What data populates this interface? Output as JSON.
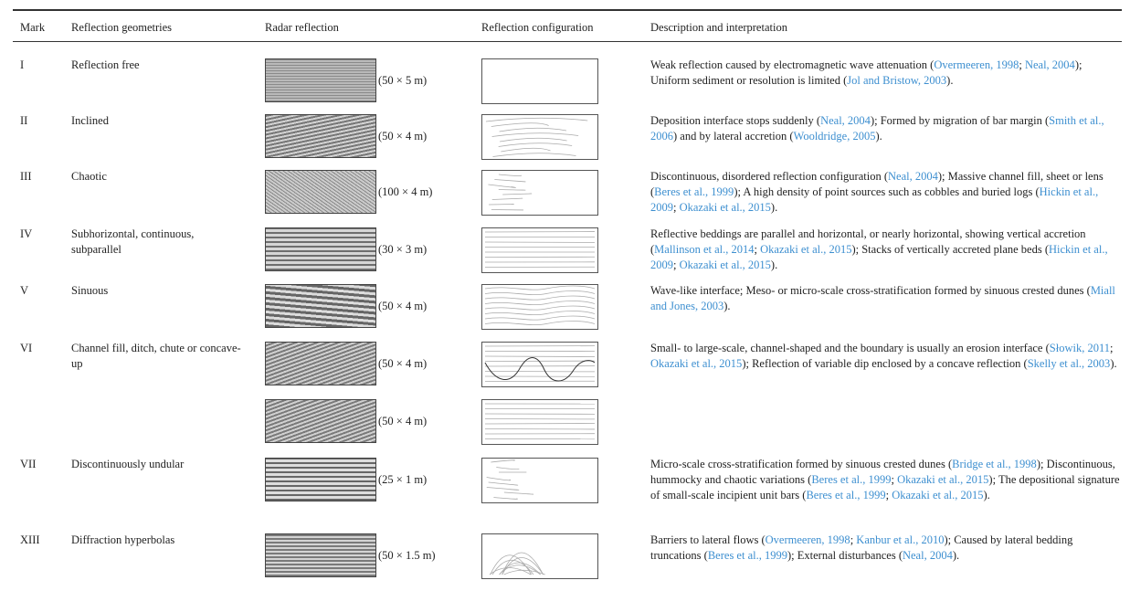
{
  "header": {
    "mark": "Mark",
    "geometry": "Reflection geometries",
    "radar": "Radar reflection",
    "configuration": "Reflection configuration",
    "description": "Description and interpretation"
  },
  "rows": [
    {
      "mark": "I",
      "geometry": "Reflection free",
      "scales": [
        "(50 × 5 m)"
      ],
      "description": [
        {
          "text": "Weak reflection caused by electromagnetic wave attenuation ("
        },
        {
          "text": "Overmeeren, 1998",
          "cite": true
        },
        {
          "text": "; "
        },
        {
          "text": "Neal, 2004",
          "cite": true
        },
        {
          "text": "); Uniform sediment or resolution is limited ("
        },
        {
          "text": "Jol and Bristow, 2003",
          "cite": true
        },
        {
          "text": ")."
        }
      ]
    },
    {
      "mark": "II",
      "geometry": "Inclined",
      "scales": [
        "(50 × 4 m)"
      ],
      "description": [
        {
          "text": "Deposition interface stops suddenly ("
        },
        {
          "text": "Neal, 2004",
          "cite": true
        },
        {
          "text": "); Formed by migration of bar margin ("
        },
        {
          "text": "Smith et al., 2006",
          "cite": true
        },
        {
          "text": ") and by lateral accretion ("
        },
        {
          "text": "Wooldridge, 2005",
          "cite": true
        },
        {
          "text": ")."
        }
      ]
    },
    {
      "mark": "III",
      "geometry": "Chaotic",
      "scales": [
        "(100 × 4 m)"
      ],
      "description": [
        {
          "text": "Discontinuous, disordered reflection configuration ("
        },
        {
          "text": "Neal, 2004",
          "cite": true
        },
        {
          "text": "); Massive channel fill, sheet or lens ("
        },
        {
          "text": "Beres et al., 1999",
          "cite": true
        },
        {
          "text": "); A high density of point sources such as cobbles and buried logs ("
        },
        {
          "text": "Hickin et al., 2009",
          "cite": true
        },
        {
          "text": "; "
        },
        {
          "text": "Okazaki et al., 2015",
          "cite": true
        },
        {
          "text": ")."
        }
      ]
    },
    {
      "mark": "IV",
      "geometry": "Subhorizontal, continuous, subparallel",
      "scales": [
        "(30 × 3 m)"
      ],
      "description": [
        {
          "text": "Reflective beddings are parallel and horizontal, or nearly horizontal, showing vertical accretion ("
        },
        {
          "text": "Mallinson et al., 2014",
          "cite": true
        },
        {
          "text": "; "
        },
        {
          "text": "Okazaki et al., 2015",
          "cite": true
        },
        {
          "text": "); Stacks of vertically accreted plane beds ("
        },
        {
          "text": "Hickin et al., 2009",
          "cite": true
        },
        {
          "text": "; "
        },
        {
          "text": "Okazaki et al., 2015",
          "cite": true
        },
        {
          "text": ")."
        }
      ]
    },
    {
      "mark": "V",
      "geometry": "Sinuous",
      "scales": [
        "(50 × 4 m)"
      ],
      "description": [
        {
          "text": "Wave-like interface; Meso- or micro-scale cross-stratification formed by sinuous crested dunes ("
        },
        {
          "text": "Miall and Jones, 2003",
          "cite": true
        },
        {
          "text": ")."
        }
      ]
    },
    {
      "mark": "VI",
      "geometry": "Channel fill, ditch, chute or concave-up",
      "scales": [
        "(50 × 4 m)",
        "(50 × 4 m)"
      ],
      "description": [
        {
          "text": "Small- to large-scale, channel-shaped and the boundary is usually an erosion interface ("
        },
        {
          "text": "Słowik, 2011",
          "cite": true
        },
        {
          "text": "; "
        },
        {
          "text": "Okazaki et al., 2015",
          "cite": true
        },
        {
          "text": "); Reflection of variable dip enclosed by a concave reflection ("
        },
        {
          "text": "Skelly et al., 2003",
          "cite": true
        },
        {
          "text": ")."
        }
      ]
    },
    {
      "mark": "VII",
      "geometry": "Discontinuously undular",
      "scales": [
        "(25 × 1 m)"
      ],
      "description": [
        {
          "text": "Micro-scale cross-stratification formed by sinuous crested dunes ("
        },
        {
          "text": "Bridge et al., 1998",
          "cite": true
        },
        {
          "text": "); Discontinuous, hummocky and chaotic variations ("
        },
        {
          "text": "Beres et al., 1999",
          "cite": true
        },
        {
          "text": "; "
        },
        {
          "text": "Okazaki et al., 2015",
          "cite": true
        },
        {
          "text": "); The depositional signature of small-scale incipient unit bars ("
        },
        {
          "text": "Beres et al., 1999",
          "cite": true
        },
        {
          "text": "; "
        },
        {
          "text": "Okazaki et al., 2015",
          "cite": true
        },
        {
          "text": ")."
        }
      ]
    },
    {
      "mark": "XIII",
      "geometry": "Diffraction hyperbolas",
      "scales": [
        "(50 × 1.5 m)"
      ],
      "description": [
        {
          "text": "Barriers to lateral flows ("
        },
        {
          "text": "Overmeeren, 1998",
          "cite": true
        },
        {
          "text": "; "
        },
        {
          "text": "Kanbur et al., 2010",
          "cite": true
        },
        {
          "text": "); Caused by lateral bedding truncations ("
        },
        {
          "text": "Beres et al., 1999",
          "cite": true
        },
        {
          "text": "); External disturbances ("
        },
        {
          "text": "Neal, 2004",
          "cite": true
        },
        {
          "text": ")."
        }
      ]
    }
  ]
}
